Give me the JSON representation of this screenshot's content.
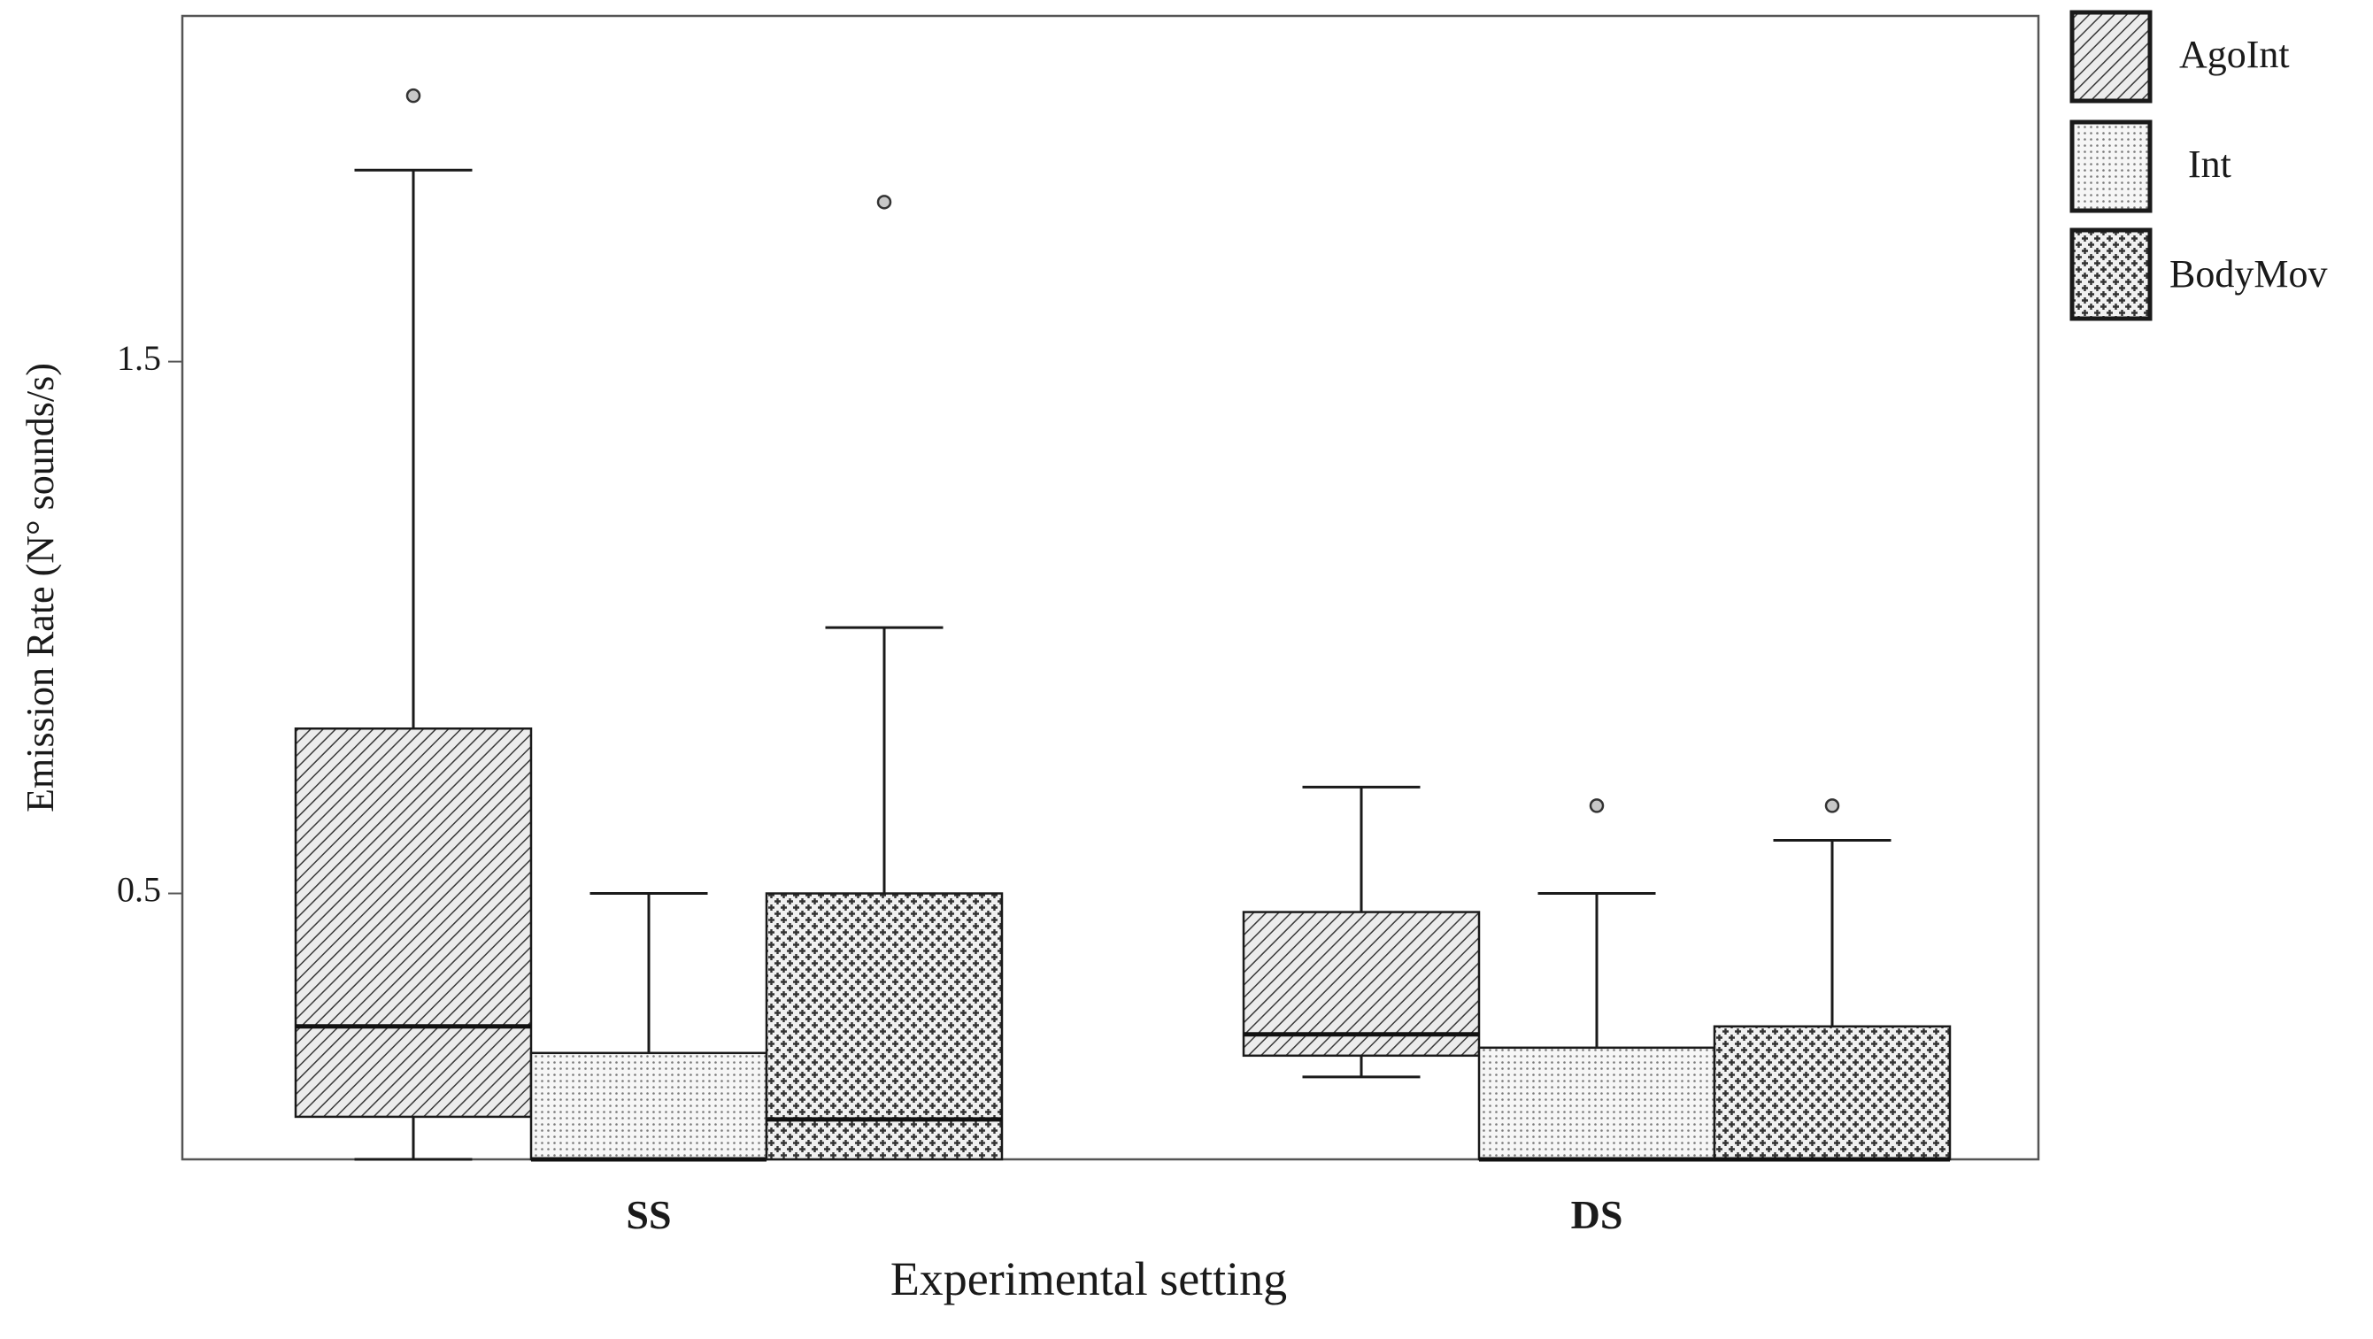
{
  "chart_data": {
    "type": "boxplot",
    "title": "",
    "xlabel": "Experimental setting",
    "ylabel": "Emission Rate (N° sounds/s)",
    "categories": [
      "SS",
      "DS"
    ],
    "ylim": [
      0,
      2.15
    ],
    "yticks": [
      0.5,
      1.5
    ],
    "ytick_labels": [
      "0.5",
      "1.5"
    ],
    "legend_position": "top-right outside",
    "series": [
      {
        "name": "AgoInt",
        "pattern": "diagonal",
        "boxes": [
          {
            "category": "SS",
            "whisker_low": 0.0,
            "q1": 0.08,
            "median": 0.25,
            "q3": 0.81,
            "whisker_high": 1.86,
            "outliers": [
              2.0
            ]
          },
          {
            "category": "DS",
            "whisker_low": 0.155,
            "q1": 0.195,
            "median": 0.235,
            "q3": 0.465,
            "whisker_high": 0.7,
            "outliers": []
          }
        ]
      },
      {
        "name": "Int",
        "pattern": "dots",
        "boxes": [
          {
            "category": "SS",
            "whisker_low": 0.0,
            "q1": 0.0,
            "median": 0.0,
            "q3": 0.2,
            "whisker_high": 0.5,
            "outliers": []
          },
          {
            "category": "DS",
            "whisker_low": 0.0,
            "q1": 0.0,
            "median": 0.0,
            "q3": 0.21,
            "whisker_high": 0.5,
            "outliers": [
              0.665
            ]
          }
        ]
      },
      {
        "name": "BodyMov",
        "pattern": "checker",
        "boxes": [
          {
            "category": "SS",
            "whisker_low": 0.0,
            "q1": 0.0,
            "median": 0.075,
            "q3": 0.5,
            "whisker_high": 1.0,
            "outliers": [
              1.8
            ]
          },
          {
            "category": "DS",
            "whisker_low": 0.0,
            "q1": 0.0,
            "median": 0.0,
            "q3": 0.25,
            "whisker_high": 0.6,
            "outliers": [
              0.665
            ]
          }
        ]
      }
    ]
  },
  "colors": {
    "line": "#1a1a1a",
    "frame": "#555555",
    "background": "#ffffff"
  }
}
